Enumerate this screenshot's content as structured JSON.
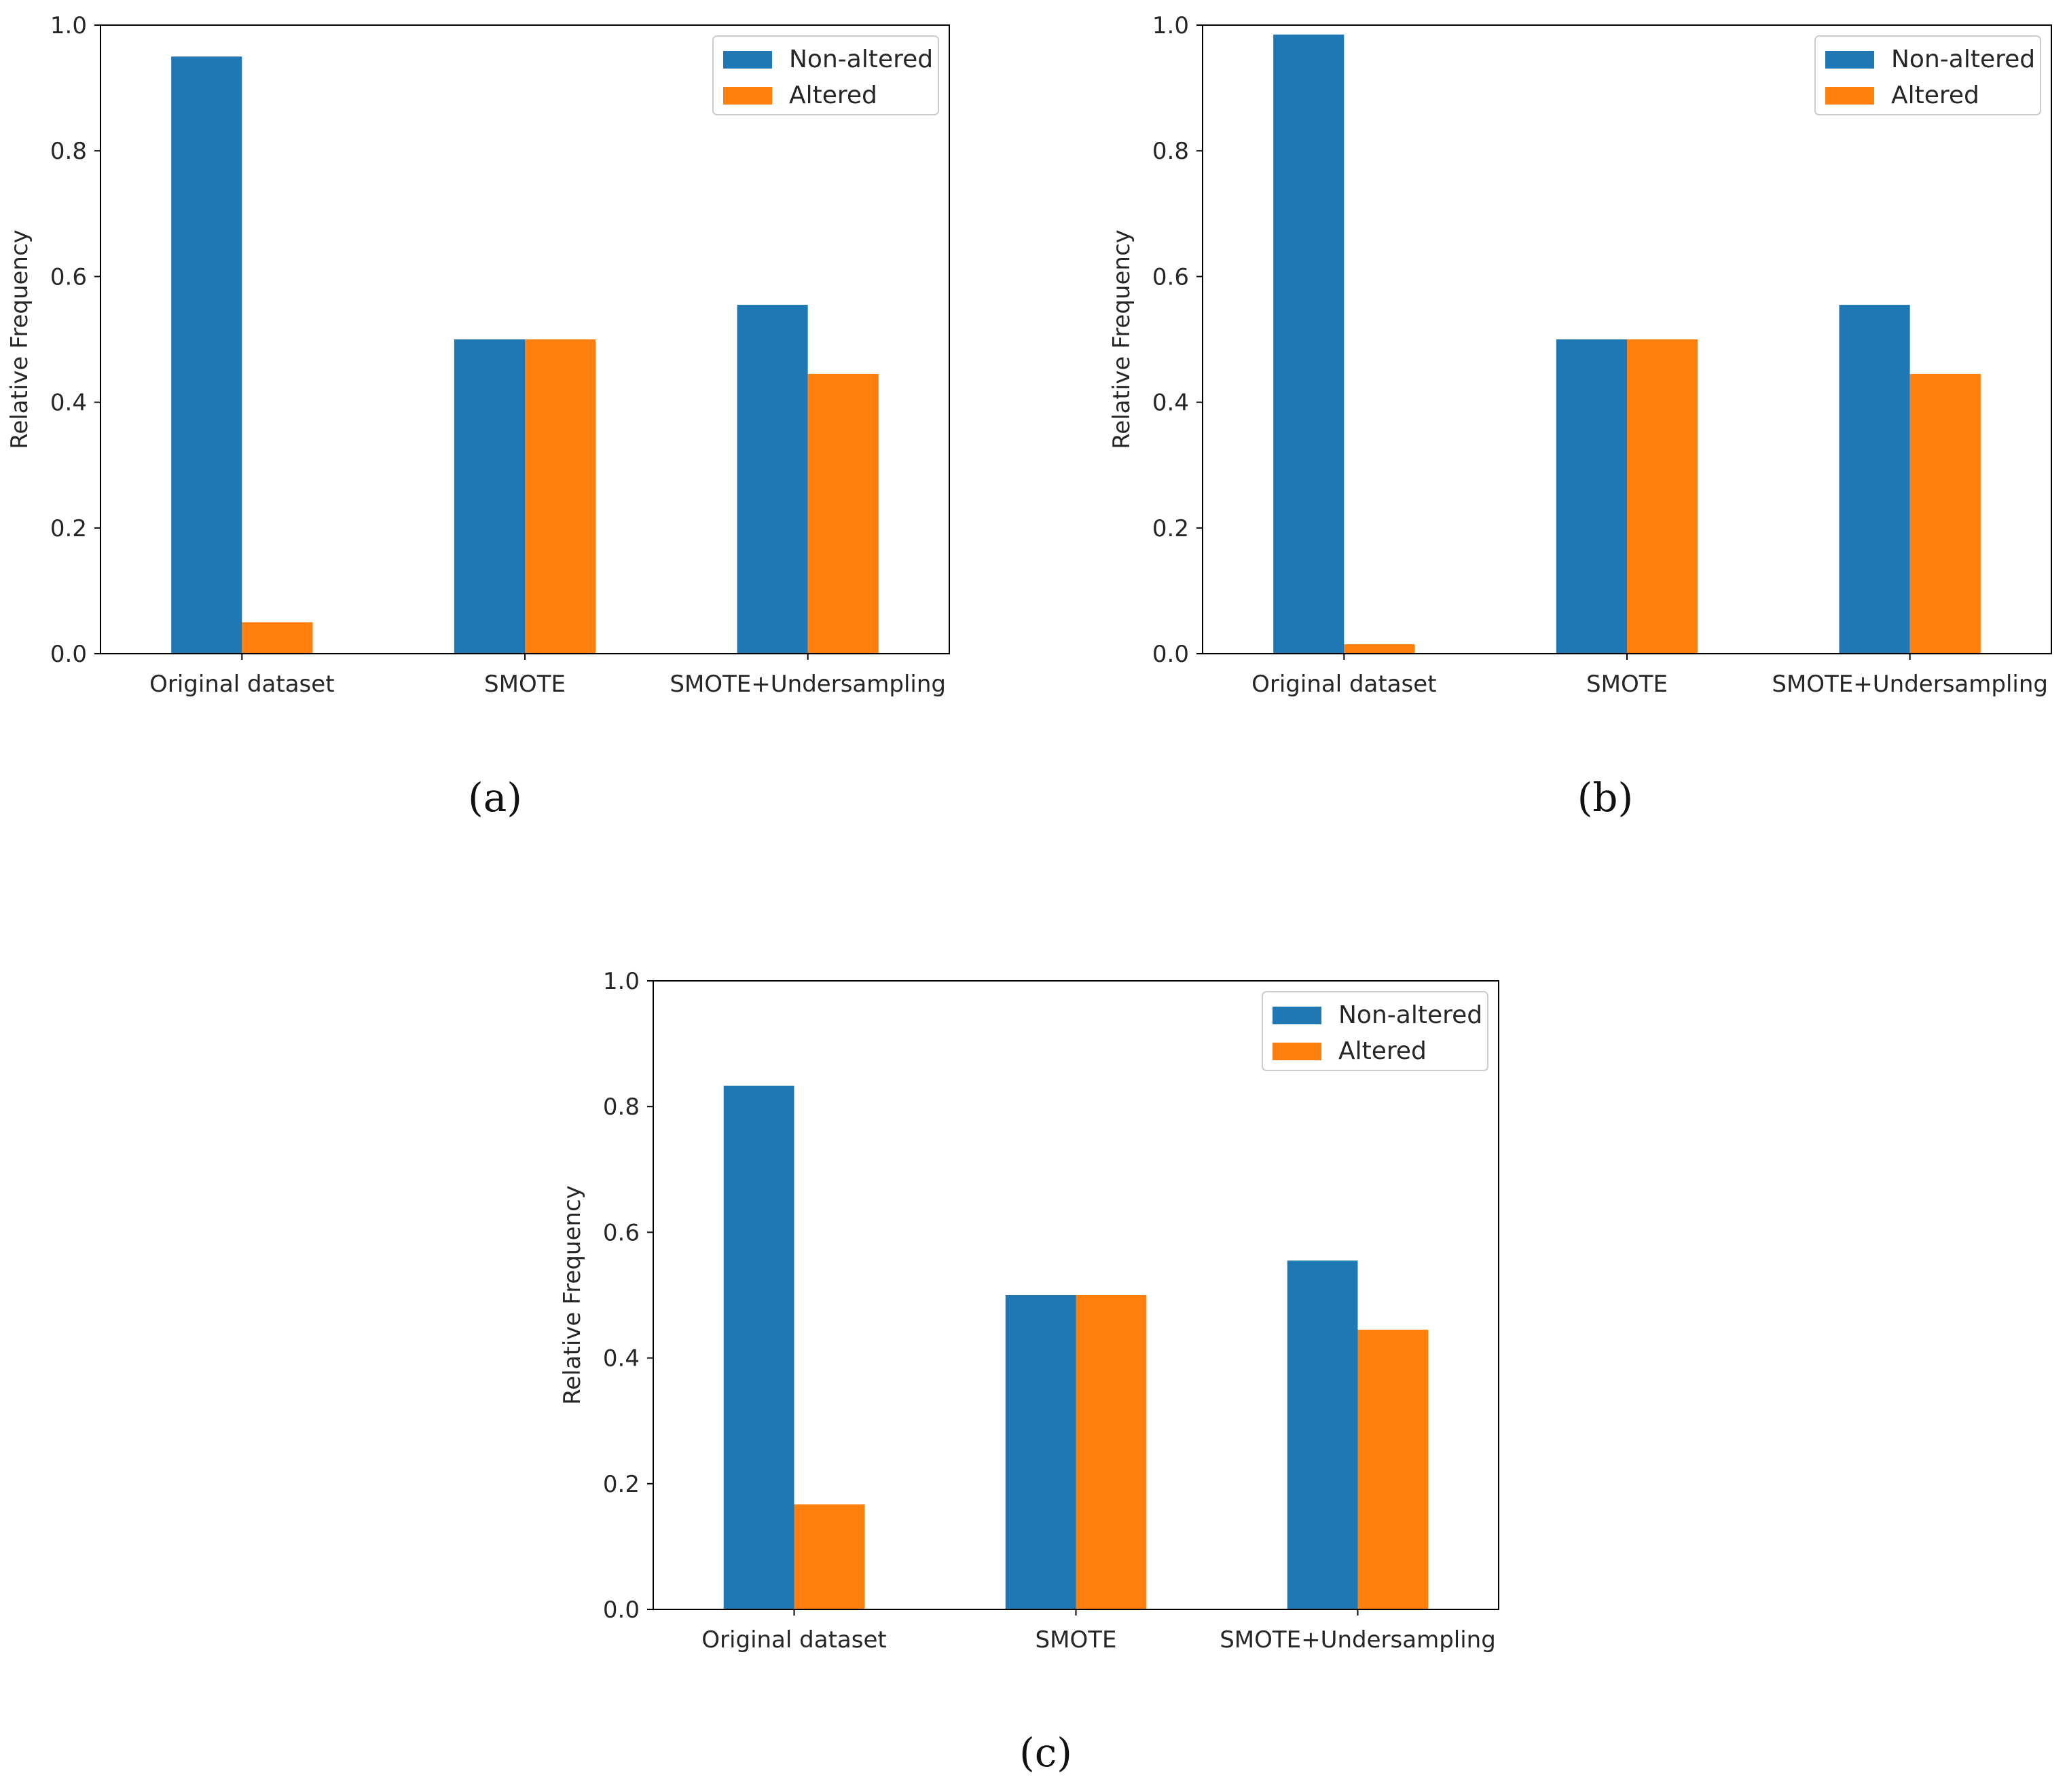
{
  "figure": {
    "captions": [
      "(a)",
      "(b)",
      "(c)"
    ]
  },
  "chart_data": [
    {
      "type": "bar",
      "panel": "a",
      "categories": [
        "Original dataset",
        "SMOTE",
        "SMOTE+Undersampling"
      ],
      "series": [
        {
          "name": "Non-altered",
          "color": "#1f77b4",
          "values": [
            0.95,
            0.5,
            0.555
          ]
        },
        {
          "name": "Altered",
          "color": "#ff7f0e",
          "values": [
            0.05,
            0.5,
            0.445
          ]
        }
      ],
      "title": "",
      "xlabel": "",
      "ylabel": "Relative Frequency",
      "ylim": [
        0,
        1.0
      ],
      "yticks": [
        "0.0",
        "0.2",
        "0.4",
        "0.6",
        "0.8",
        "1.0"
      ],
      "legend": "top-right",
      "grid": false
    },
    {
      "type": "bar",
      "panel": "b",
      "categories": [
        "Original dataset",
        "SMOTE",
        "SMOTE+Undersampling"
      ],
      "series": [
        {
          "name": "Non-altered",
          "color": "#1f77b4",
          "values": [
            0.985,
            0.5,
            0.555
          ]
        },
        {
          "name": "Altered",
          "color": "#ff7f0e",
          "values": [
            0.015,
            0.5,
            0.445
          ]
        }
      ],
      "title": "",
      "xlabel": "",
      "ylabel": "Relative Frequency",
      "ylim": [
        0,
        1.0
      ],
      "yticks": [
        "0.0",
        "0.2",
        "0.4",
        "0.6",
        "0.8",
        "1.0"
      ],
      "legend": "top-right",
      "grid": false
    },
    {
      "type": "bar",
      "panel": "c",
      "categories": [
        "Original dataset",
        "SMOTE",
        "SMOTE+Undersampling"
      ],
      "series": [
        {
          "name": "Non-altered",
          "color": "#1f77b4",
          "values": [
            0.833,
            0.5,
            0.555
          ]
        },
        {
          "name": "Altered",
          "color": "#ff7f0e",
          "values": [
            0.167,
            0.5,
            0.445
          ]
        }
      ],
      "title": "",
      "xlabel": "",
      "ylabel": "Relative Frequency",
      "ylim": [
        0,
        1.0
      ],
      "yticks": [
        "0.0",
        "0.2",
        "0.4",
        "0.6",
        "0.8",
        "1.0"
      ],
      "legend": "top-right",
      "grid": false
    }
  ]
}
